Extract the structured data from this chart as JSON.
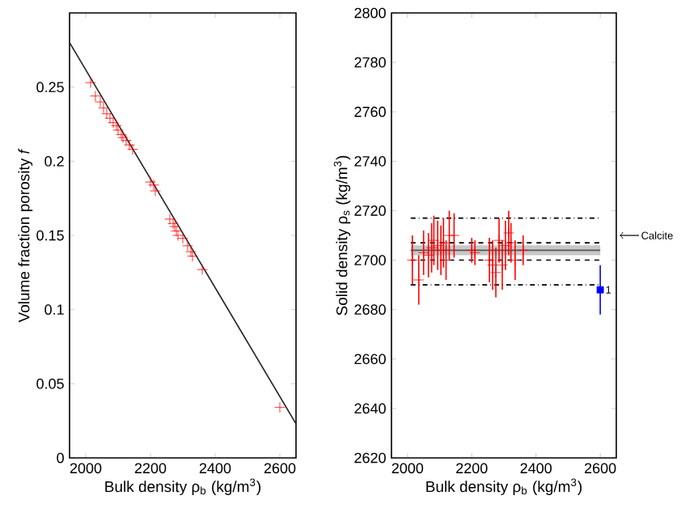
{
  "chart_data": [
    {
      "type": "scatter",
      "xlabel": "Bulk density  ρ$_{b}$ (kg/m$^{3}$)",
      "ylabel": "Volume fraction porosity *f*",
      "xlim": [
        1950,
        2650
      ],
      "ylim": [
        0,
        0.3
      ],
      "xticks": [
        2000,
        2200,
        2400,
        2600
      ],
      "yticks": [
        0,
        0.05,
        0.1,
        0.15,
        0.2,
        0.25
      ],
      "series": [
        {
          "marker": "cross",
          "color": "#ff0000",
          "x": [
            2015,
            2030,
            2045,
            2055,
            2065,
            2075,
            2085,
            2095,
            2100,
            2110,
            2115,
            2125,
            2135,
            2145,
            2200,
            2210,
            2215,
            2260,
            2270,
            2275,
            2280,
            2285,
            2300,
            2315,
            2325,
            2330,
            2360,
            2600
          ],
          "values": [
            0.253,
            0.244,
            0.24,
            0.236,
            0.232,
            0.229,
            0.226,
            0.224,
            0.221,
            0.218,
            0.216,
            0.214,
            0.211,
            0.208,
            0.186,
            0.184,
            0.18,
            0.161,
            0.158,
            0.156,
            0.153,
            0.15,
            0.148,
            0.143,
            0.139,
            0.136,
            0.127,
            0.034
          ]
        },
        {
          "type": "line",
          "color": "#222222",
          "x": [
            1950,
            2650
          ],
          "values": [
            0.28,
            0.023
          ]
        }
      ]
    },
    {
      "type": "scatter",
      "xlabel": "Bulk density  ρ$_{b}$ (kg/m$^{3}$)",
      "ylabel": "Solid density  ρ$_{s}$ (kg/m$^{3}$)",
      "xlim": [
        1950,
        2650
      ],
      "ylim": [
        2620,
        2800
      ],
      "xticks": [
        2000,
        2200,
        2400,
        2600
      ],
      "yticks": [
        2620,
        2640,
        2660,
        2680,
        2700,
        2720,
        2740,
        2760,
        2780,
        2800
      ],
      "series": [
        {
          "marker": "cross",
          "color": "#ff0000",
          "x": [
            2015,
            2035,
            2050,
            2065,
            2075,
            2082,
            2094,
            2104,
            2112,
            2120,
            2130,
            2145,
            2200,
            2210,
            2255,
            2265,
            2275,
            2285,
            2295,
            2305,
            2315,
            2322,
            2335,
            2360
          ],
          "values": [
            2700,
            2692,
            2703,
            2702,
            2705,
            2708,
            2706,
            2704,
            2707,
            2700,
            2710,
            2710,
            2704,
            2703,
            2700,
            2698,
            2695,
            2708,
            2698,
            2706,
            2711,
            2707,
            2700,
            2704
          ],
          "errors": [
            10,
            10,
            9,
            9,
            10,
            10,
            10,
            10,
            10,
            8,
            10,
            9,
            5,
            5,
            9,
            10,
            10,
            9,
            10,
            10,
            9,
            8,
            8,
            6
          ]
        },
        {
          "marker": "square",
          "color": "#0000ff",
          "x": [
            2600
          ],
          "values": [
            2688
          ],
          "errors": [
            10
          ]
        }
      ],
      "bands": [
        {
          "axis": "y",
          "from": 2702,
          "to": 2706,
          "color": "#c8c8c8"
        }
      ],
      "ref_lines": [
        {
          "axis": "y",
          "value": 2717,
          "color": "#000000",
          "line_style": "dashdot"
        },
        {
          "axis": "y",
          "value": 2690,
          "color": "#000000",
          "line_style": "dashdot"
        },
        {
          "axis": "y",
          "value": 2707,
          "color": "#000000",
          "line_style": "dashed"
        },
        {
          "axis": "y",
          "value": 2700,
          "color": "#000000",
          "line_style": "dashed"
        },
        {
          "axis": "y",
          "value": 2704,
          "color": "#555555",
          "line_style": "solid"
        }
      ],
      "annotations": [
        "Calcite",
        {
          "text": "1",
          "x": 2600,
          "y": 2688
        }
      ]
    }
  ]
}
